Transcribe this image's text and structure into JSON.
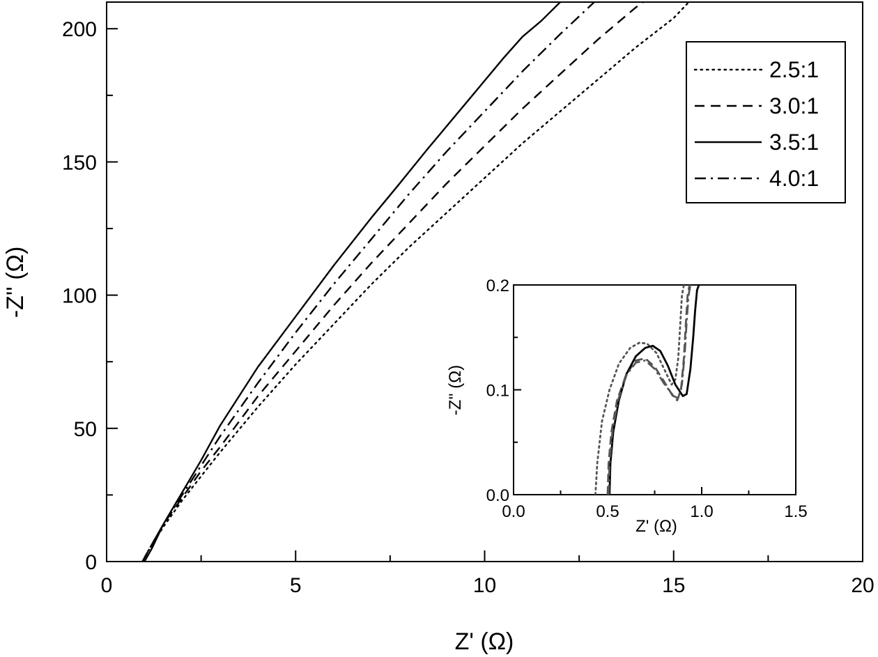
{
  "chart_data": {
    "type": "line",
    "xlabel": "Z' (Ω)",
    "ylabel": "-Z'' (Ω)",
    "xlim": [
      0,
      20
    ],
    "ylim": [
      0,
      210
    ],
    "xticks": [
      0,
      5,
      10,
      15,
      20
    ],
    "xticks_minor": [
      2.5,
      7.5,
      12.5,
      17.5
    ],
    "yticks": [
      0,
      50,
      100,
      150,
      200
    ],
    "yticks_minor": [
      25,
      75,
      125,
      175
    ],
    "grid": false,
    "legend": "top-right",
    "series": [
      {
        "name": "2.5:1",
        "dash": "dotted",
        "x": [
          0.95,
          1.1,
          1.5,
          2.0,
          2.5,
          3.0,
          4.0,
          5.0,
          6.0,
          7.0,
          8.0,
          9.0,
          10.0,
          11.0,
          12.0,
          13.0,
          14.0,
          15.0,
          15.4
        ],
        "y": [
          0,
          4,
          13,
          23,
          32,
          41,
          58,
          74,
          89,
          104,
          118,
          131,
          144,
          157,
          169,
          181,
          193,
          204,
          210
        ]
      },
      {
        "name": "3.0:1",
        "dash": "dashed",
        "x": [
          0.95,
          1.1,
          1.5,
          2.0,
          2.5,
          3.0,
          4.0,
          5.0,
          6.0,
          7.0,
          8.0,
          9.0,
          10.0,
          11.0,
          12.0,
          13.0,
          14.0,
          14.2
        ],
        "y": [
          0,
          4,
          14,
          24,
          34,
          43,
          62,
          79,
          96,
          112,
          127,
          142,
          156,
          170,
          183,
          196,
          208,
          210
        ]
      },
      {
        "name": "3.5:1",
        "dash": "solid",
        "x": [
          1.0,
          1.2,
          1.5,
          2.0,
          2.5,
          3.0,
          4.0,
          5.0,
          6.0,
          7.0,
          7.7,
          8.5,
          9.5,
          10.5,
          11.0,
          11.5,
          12.0
        ],
        "y": [
          0,
          5,
          14,
          26,
          38,
          51,
          73,
          92,
          111,
          129,
          141,
          155,
          172,
          189,
          197,
          203,
          210
        ]
      },
      {
        "name": "4.0:1",
        "dash": "dashdot",
        "x": [
          0.95,
          1.1,
          1.5,
          2.0,
          2.5,
          3.0,
          4.0,
          5.0,
          6.0,
          7.0,
          8.0,
          9.0,
          10.0,
          11.0,
          12.0,
          12.9
        ],
        "y": [
          0,
          4,
          14,
          25,
          36,
          47,
          67,
          86,
          104,
          121,
          138,
          154,
          169,
          184,
          198,
          210
        ]
      }
    ],
    "inset": {
      "type": "line",
      "xlabel": "Z' (Ω)",
      "ylabel": "-Z'' (Ω)",
      "xlim": [
        0,
        1.5
      ],
      "ylim": [
        0,
        0.2
      ],
      "xticks": [
        0.0,
        0.5,
        1.0,
        1.5
      ],
      "xticks_label": [
        "0.0",
        "0.5",
        "1.0",
        "1.5"
      ],
      "xticks_minor": [
        0.25,
        0.75,
        1.25
      ],
      "yticks": [
        0.0,
        0.1,
        0.2
      ],
      "yticks_label": [
        "0.0",
        "0.1",
        "0.2"
      ],
      "yticks_minor": [
        0.05,
        0.15
      ],
      "series": [
        {
          "name": "2.5:1",
          "dash": "dotted",
          "color": "#555555",
          "x": [
            0.435,
            0.445,
            0.47,
            0.51,
            0.56,
            0.62,
            0.67,
            0.71,
            0.76,
            0.8,
            0.84,
            0.86,
            0.875,
            0.885,
            0.895,
            0.905
          ],
          "y": [
            0,
            0.03,
            0.07,
            0.1,
            0.125,
            0.14,
            0.145,
            0.144,
            0.135,
            0.12,
            0.105,
            0.11,
            0.13,
            0.16,
            0.19,
            0.2
          ]
        },
        {
          "name": "3.0:1",
          "dash": "dashed",
          "color": "#555555",
          "x": [
            0.5,
            0.505,
            0.52,
            0.55,
            0.6,
            0.65,
            0.7,
            0.75,
            0.8,
            0.85,
            0.87,
            0.89,
            0.905,
            0.915,
            0.925,
            0.935
          ],
          "y": [
            0,
            0.03,
            0.06,
            0.09,
            0.115,
            0.128,
            0.13,
            0.122,
            0.108,
            0.093,
            0.09,
            0.1,
            0.13,
            0.16,
            0.19,
            0.2
          ]
        },
        {
          "name": "3.5:1",
          "dash": "solid",
          "color": "#000000",
          "x": [
            0.51,
            0.515,
            0.53,
            0.56,
            0.6,
            0.65,
            0.7,
            0.74,
            0.78,
            0.82,
            0.86,
            0.9,
            0.92,
            0.94,
            0.955,
            0.965,
            0.975,
            0.985
          ],
          "y": [
            0,
            0.03,
            0.06,
            0.09,
            0.115,
            0.132,
            0.14,
            0.142,
            0.137,
            0.123,
            0.105,
            0.094,
            0.096,
            0.12,
            0.15,
            0.175,
            0.195,
            0.2
          ]
        },
        {
          "name": "4.0:1",
          "dash": "dashdot",
          "color": "#555555",
          "x": [
            0.505,
            0.51,
            0.525,
            0.555,
            0.6,
            0.65,
            0.7,
            0.75,
            0.8,
            0.85,
            0.875,
            0.895,
            0.91,
            0.92,
            0.93,
            0.94
          ],
          "y": [
            0,
            0.03,
            0.06,
            0.09,
            0.114,
            0.126,
            0.128,
            0.12,
            0.106,
            0.094,
            0.092,
            0.105,
            0.135,
            0.165,
            0.19,
            0.2
          ]
        }
      ]
    }
  }
}
